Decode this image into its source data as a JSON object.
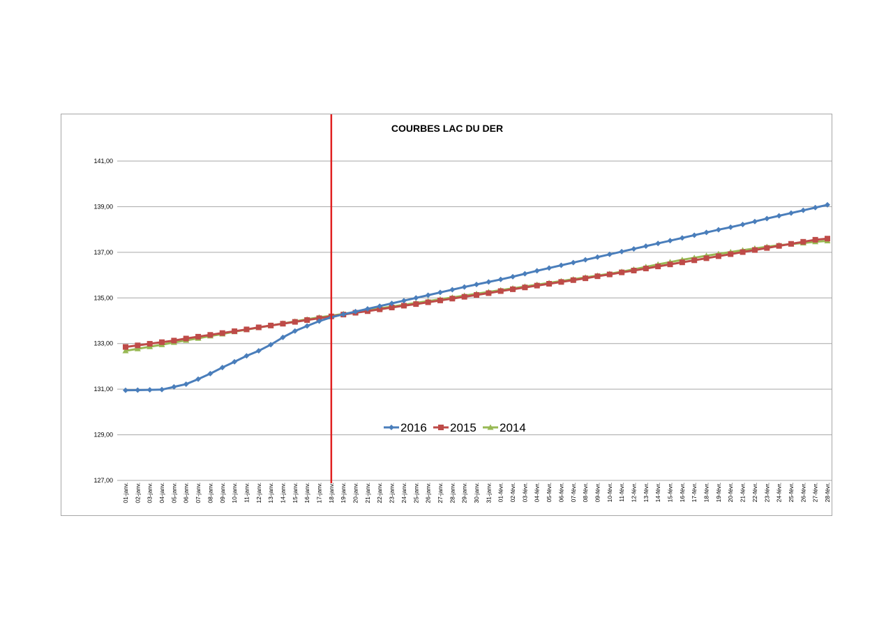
{
  "chart_data": {
    "type": "line",
    "title": "COURBES  LAC DU DER",
    "xlabel": "",
    "ylabel": "",
    "ylim": [
      127,
      142
    ],
    "yticks": [
      "127,00",
      "129,00",
      "131,00",
      "133,00",
      "135,00",
      "137,00",
      "139,00",
      "141,00"
    ],
    "ytick_values": [
      127,
      129,
      131,
      133,
      135,
      137,
      139,
      141
    ],
    "grid": true,
    "legend_position": "center",
    "categories": [
      "01-janv.",
      "02-janv.",
      "03-janv.",
      "04-janv.",
      "05-janv.",
      "06-janv.",
      "07-janv.",
      "08-janv.",
      "09-janv.",
      "10-janv.",
      "11-janv.",
      "12-janv.",
      "13-janv.",
      "14-janv.",
      "15-janv.",
      "16-janv.",
      "17-janv.",
      "18-janv.",
      "19-janv.",
      "20-janv.",
      "21-janv.",
      "22-janv.",
      "23-janv.",
      "24-janv.",
      "25-janv.",
      "26-janv.",
      "27-janv.",
      "28-janv.",
      "29-janv.",
      "30-janv.",
      "31-janv.",
      "01-févr.",
      "02-févr.",
      "03-févr.",
      "04-févr.",
      "05-févr.",
      "06-févr.",
      "07-févr.",
      "08-févr.",
      "09-févr.",
      "10-févr.",
      "11-févr.",
      "12-févr.",
      "13-févr.",
      "14-févr.",
      "15-févr.",
      "16-févr.",
      "17-févr.",
      "18-févr.",
      "19-févr.",
      "20-févr.",
      "21-févr.",
      "22-févr.",
      "23-févr.",
      "24-févr.",
      "25-févr.",
      "26-févr.",
      "27-févr.",
      "28-févr."
    ],
    "series": [
      {
        "name": "2016",
        "color": "#4a7ebb",
        "marker": "diamond",
        "values": [
          130.95,
          130.96,
          130.97,
          130.98,
          131.1,
          131.22,
          131.44,
          131.68,
          131.95,
          132.2,
          132.46,
          132.68,
          132.95,
          133.27,
          133.55,
          133.77,
          133.98,
          134.15,
          134.28,
          134.4,
          134.52,
          134.64,
          134.76,
          134.88,
          135.0,
          135.12,
          135.24,
          135.36,
          135.48,
          135.59,
          135.7,
          135.81,
          135.93,
          136.06,
          136.19,
          136.31,
          136.43,
          136.55,
          136.67,
          136.79,
          136.91,
          137.03,
          137.15,
          137.27,
          137.39,
          137.51,
          137.63,
          137.75,
          137.87,
          137.99,
          138.1,
          138.22,
          138.35,
          138.48,
          138.6,
          138.72,
          138.84,
          138.96,
          139.08
        ]
      },
      {
        "name": "2015",
        "color": "#be4b48",
        "marker": "square",
        "values": [
          132.85,
          132.92,
          132.99,
          133.06,
          133.13,
          133.22,
          133.3,
          133.38,
          133.46,
          133.54,
          133.62,
          133.71,
          133.79,
          133.87,
          133.95,
          134.03,
          134.11,
          134.19,
          134.27,
          134.35,
          134.42,
          134.5,
          134.58,
          134.66,
          134.73,
          134.81,
          134.89,
          134.97,
          135.05,
          135.13,
          135.21,
          135.3,
          135.38,
          135.46,
          135.54,
          135.62,
          135.7,
          135.78,
          135.86,
          135.95,
          136.03,
          136.12,
          136.2,
          136.29,
          136.38,
          136.47,
          136.56,
          136.65,
          136.74,
          136.83,
          136.92,
          137.01,
          137.1,
          137.19,
          137.28,
          137.37,
          137.46,
          137.55,
          137.6
        ]
      },
      {
        "name": "2014",
        "color": "#98b954",
        "marker": "triangle",
        "values": [
          132.68,
          132.77,
          132.86,
          132.95,
          133.05,
          133.14,
          133.23,
          133.33,
          133.42,
          133.52,
          133.61,
          133.7,
          133.79,
          133.88,
          133.97,
          134.06,
          134.15,
          134.22,
          134.3,
          134.38,
          134.46,
          134.54,
          134.62,
          134.7,
          134.78,
          134.86,
          134.94,
          135.02,
          135.1,
          135.18,
          135.26,
          135.34,
          135.42,
          135.5,
          135.58,
          135.66,
          135.74,
          135.82,
          135.9,
          135.98,
          136.06,
          136.15,
          136.25,
          136.36,
          136.47,
          136.57,
          136.67,
          136.76,
          136.85,
          136.93,
          137.01,
          137.09,
          137.17,
          137.24,
          137.31,
          137.36,
          137.41,
          137.46,
          137.5
        ]
      }
    ],
    "reference_line": {
      "category": "18-janv.",
      "color": "#e02020"
    }
  }
}
